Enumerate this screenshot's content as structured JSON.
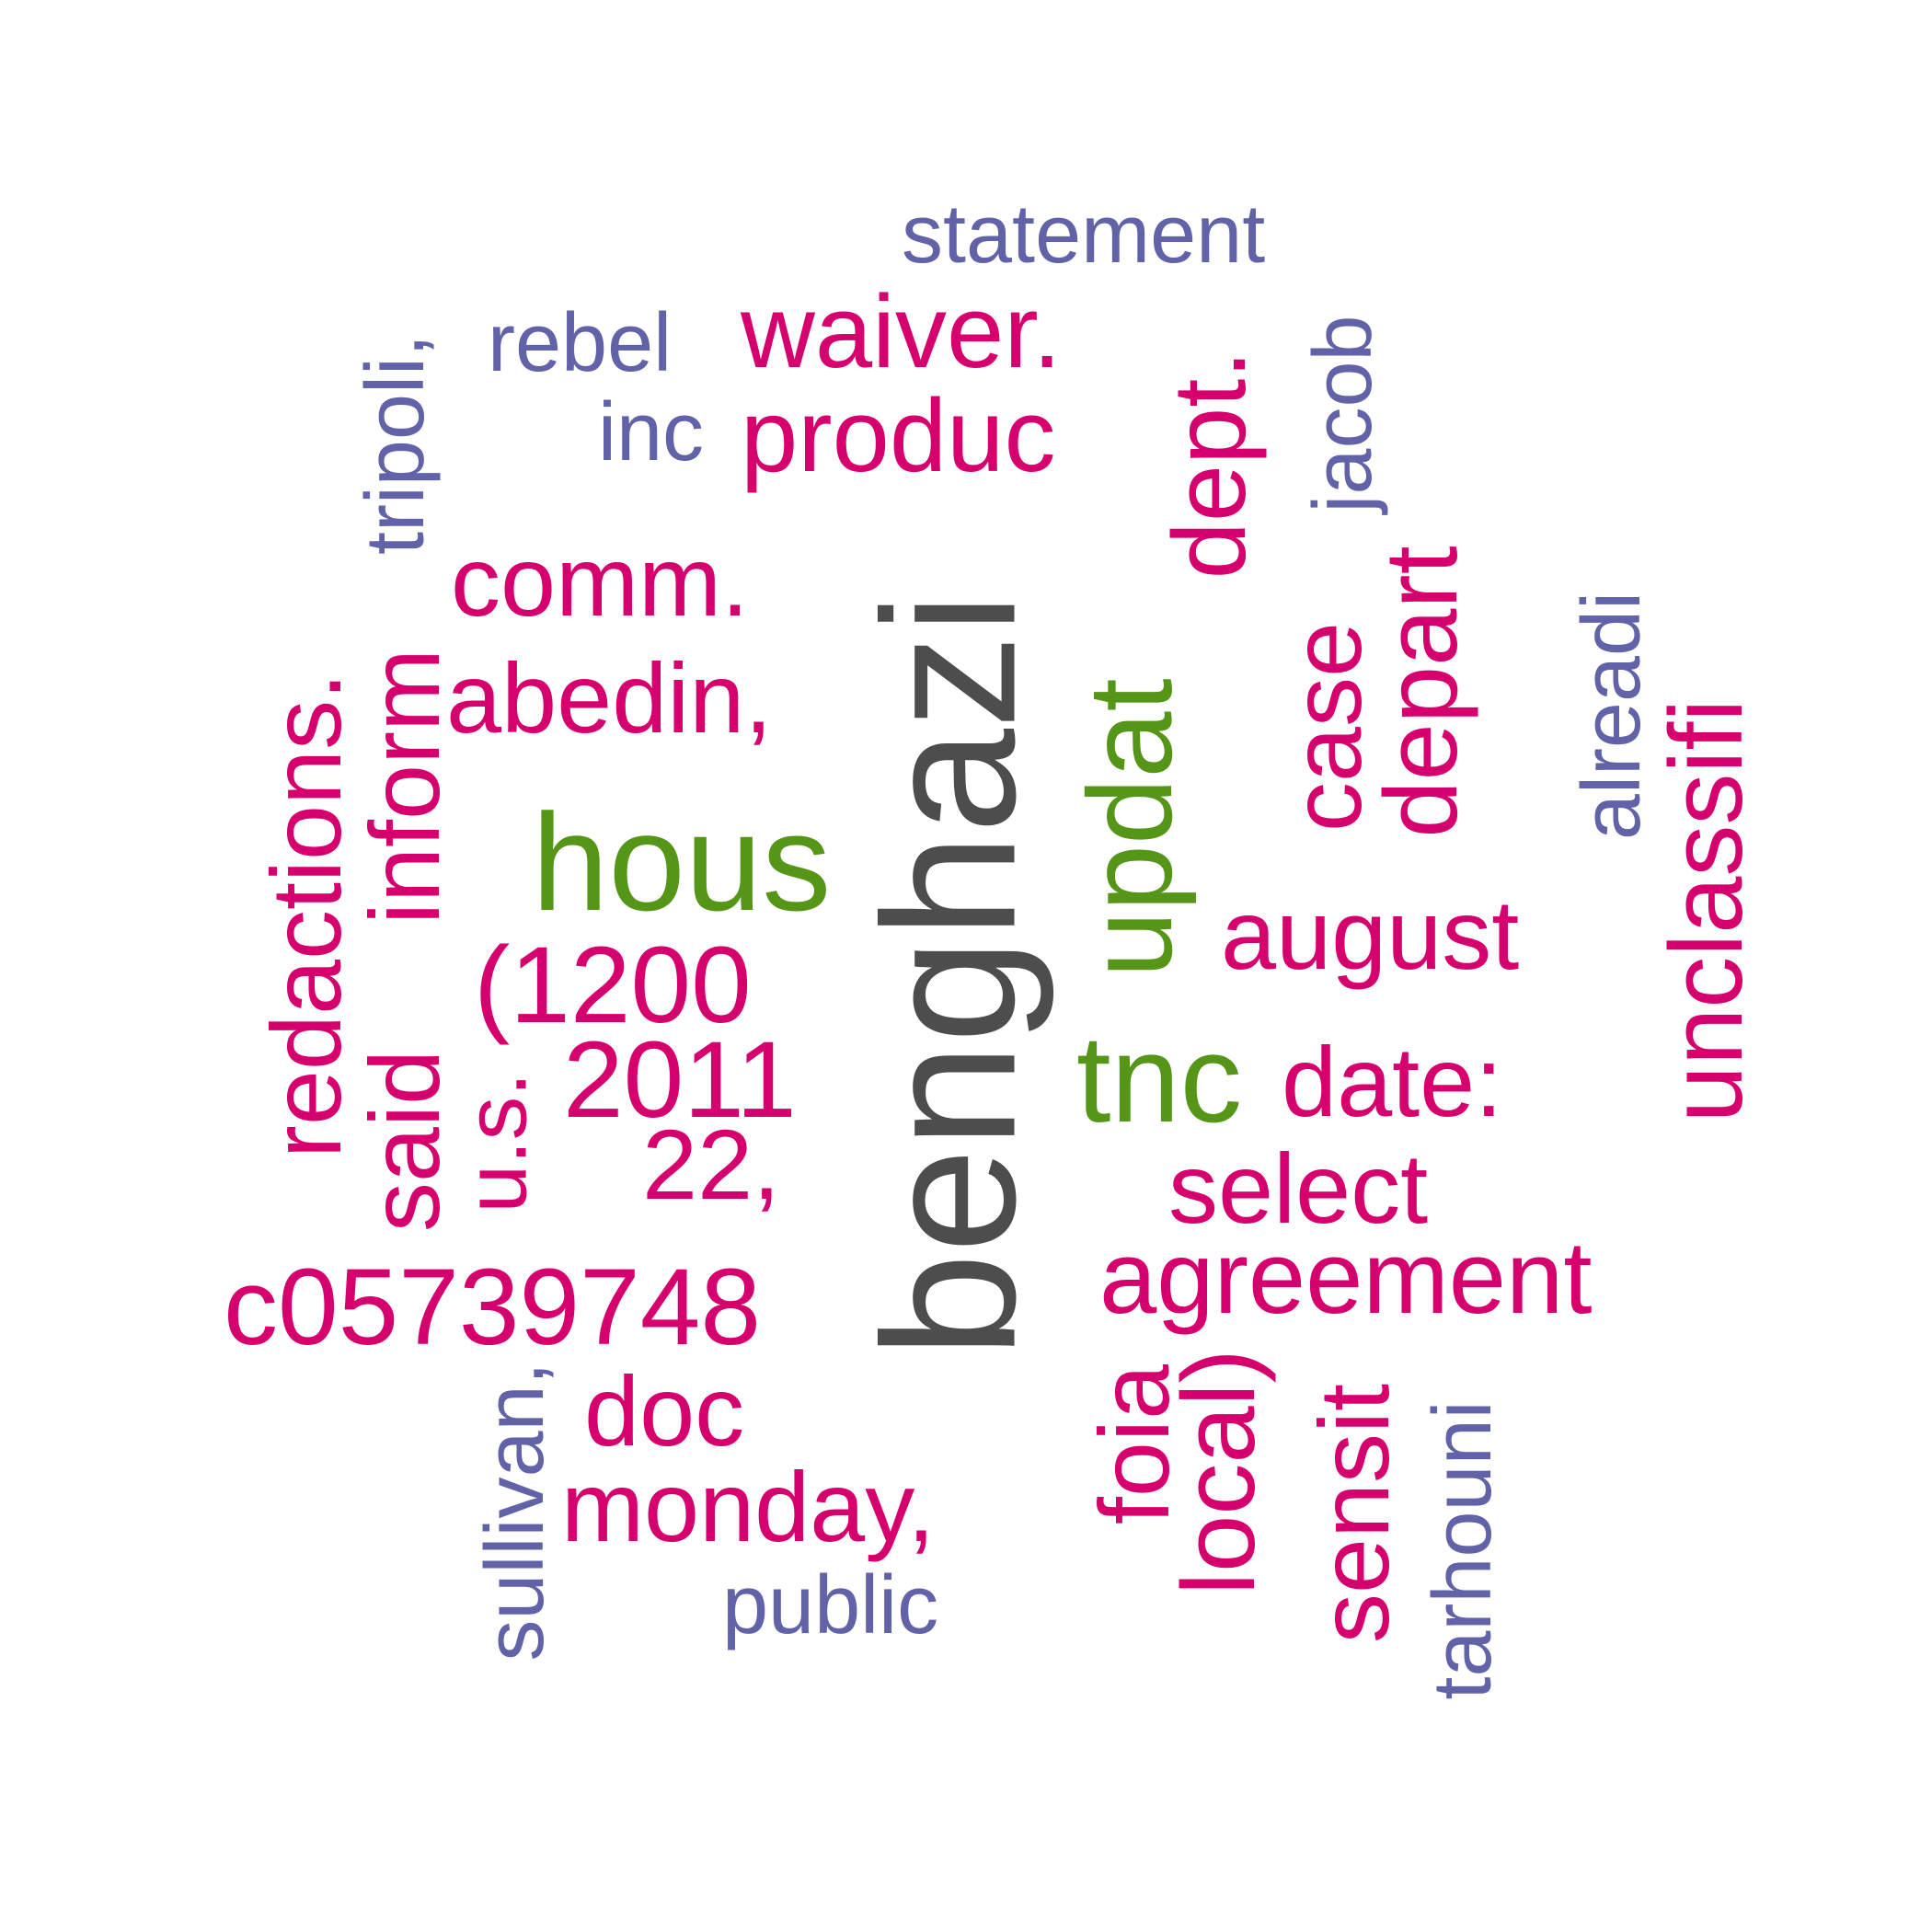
{
  "colors": {
    "large": "#4d4d4d",
    "green": "#559518",
    "magenta": "#d5006e",
    "purple": "#6262a8"
  },
  "words": {
    "benghazi": "benghazi",
    "hous": "hous",
    "updat": "updat",
    "tnc": "tnc",
    "waiver": "waiver.",
    "produc": "produc",
    "dept": "dept.",
    "comm": "comm.",
    "abedin": "abedin,",
    "redactions": "redactions.",
    "inform": "inform",
    "said": "said",
    "paren1200": "(1200",
    "year2011": "2011",
    "us": "u.s.",
    "num22": "22,",
    "c05739748": "c05739748",
    "doc": "doc",
    "monday": "monday,",
    "case": "case",
    "depart": "depart",
    "august": "august",
    "date": "date:",
    "select": "select",
    "agreement": "agreement",
    "foia": "foia",
    "local": "local)",
    "sensit": "sensit",
    "unclassifi": "unclassifi",
    "statement": "statement",
    "rebel": "rebel",
    "inc": "inc",
    "tripoli": "tripoli,",
    "jacob": "jacob",
    "alreadi": "alreadi",
    "sullivan": "sullivan,",
    "public": "public",
    "tarhouni": "tarhouni"
  }
}
